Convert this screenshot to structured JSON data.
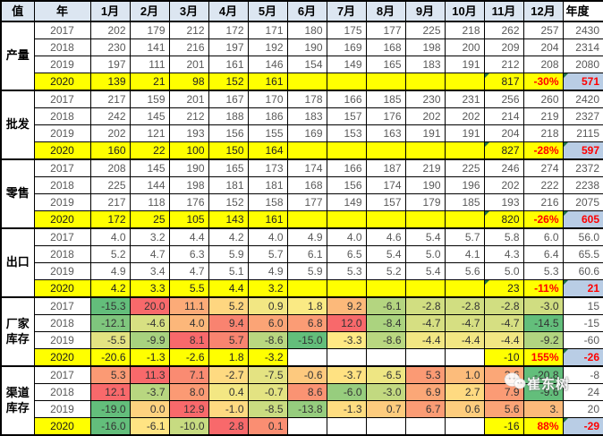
{
  "watermark": {
    "text": "崔东树",
    "icon": "wechat-icon"
  },
  "colors": {
    "header_bg": "#dce6f1",
    "highlight_yellow": "#ffff00",
    "annual_2020_bg": "#b9cde5",
    "negative_red": "#ff0000",
    "plain_text_gray": "#595959",
    "heat_green": "#63be7b",
    "heat_yellow": "#ffeb84",
    "heat_red": "#f8696b",
    "triangle_green": "#1e7145",
    "grid_black": "#000000"
  },
  "chart_data": {
    "type": "table",
    "columns": [
      "值",
      "年",
      "1月",
      "2月",
      "3月",
      "4月",
      "5月",
      "6月",
      "7月",
      "8月",
      "9月",
      "10月",
      "11月",
      "12月",
      "年度"
    ],
    "sections": [
      {
        "label": "产量",
        "heat": false,
        "rows": [
          {
            "year": "2017",
            "values": [
              "202",
              "179",
              "212",
              "172",
              "171",
              "180",
              "175",
              "177",
              "225",
              "218",
              "262",
              "257"
            ],
            "annual": "2430"
          },
          {
            "year": "2018",
            "values": [
              "230",
              "141",
              "216",
              "197",
              "192",
              "190",
              "169",
              "168",
              "198",
              "200",
              "209",
              "204"
            ],
            "annual": "2314"
          },
          {
            "year": "2019",
            "values": [
              "197",
              "111",
              "201",
              "161",
              "146",
              "154",
              "149",
              "165",
              "183",
              "191",
              "212",
              "208"
            ],
            "annual": "2080"
          },
          {
            "year": "2020",
            "values": [
              "139",
              "21",
              "98",
              "152",
              "161",
              "",
              "",
              "",
              "",
              "",
              "817",
              "-30%"
            ],
            "annual": "571",
            "values_style": "yellow"
          }
        ]
      },
      {
        "label": "批发",
        "heat": false,
        "rows": [
          {
            "year": "2017",
            "values": [
              "217",
              "159",
              "201",
              "167",
              "170",
              "178",
              "166",
              "185",
              "230",
              "231",
              "256",
              "260"
            ],
            "annual": "2420"
          },
          {
            "year": "2018",
            "values": [
              "242",
              "145",
              "212",
              "188",
              "186",
              "183",
              "157",
              "176",
              "202",
              "202",
              "214",
              "219"
            ],
            "annual": "2327"
          },
          {
            "year": "2019",
            "values": [
              "202",
              "121",
              "193",
              "156",
              "155",
              "169",
              "153",
              "163",
              "191",
              "191",
              "204",
              "218"
            ],
            "annual": "2115"
          },
          {
            "year": "2020",
            "values": [
              "160",
              "22",
              "100",
              "150",
              "164",
              "",
              "",
              "",
              "",
              "",
              "827",
              "-28%"
            ],
            "annual": "597",
            "values_style": "yellow"
          }
        ]
      },
      {
        "label": "零售",
        "heat": false,
        "rows": [
          {
            "year": "2017",
            "values": [
              "208",
              "145",
              "190",
              "165",
              "173",
              "174",
              "166",
              "187",
              "219",
              "225",
              "246",
              "274"
            ],
            "annual": "2372"
          },
          {
            "year": "2018",
            "values": [
              "225",
              "144",
              "198",
              "181",
              "181",
              "168",
              "156",
              "174",
              "190",
              "196",
              "202",
              "222"
            ],
            "annual": "2238"
          },
          {
            "year": "2019",
            "values": [
              "217",
              "118",
              "176",
              "152",
              "158",
              "177",
              "149",
              "157",
              "179",
              "185",
              "193",
              "216"
            ],
            "annual": "2075"
          },
          {
            "year": "2020",
            "values": [
              "172",
              "25",
              "105",
              "143",
              "161",
              "",
              "",
              "",
              "",
              "",
              "820",
              "-26%"
            ],
            "annual": "605",
            "values_style": "yellow"
          }
        ]
      },
      {
        "label": "出口",
        "heat": false,
        "rows": [
          {
            "year": "2017",
            "values": [
              "4.0",
              "3.2",
              "4.4",
              "4.2",
              "4.0",
              "4.9",
              "4.0",
              "4.6",
              "5.4",
              "5.7",
              "5.8",
              "6.0"
            ],
            "annual": "56.0"
          },
          {
            "year": "2018",
            "values": [
              "5.2",
              "4.7",
              "6.3",
              "5.9",
              "5.7",
              "6.1",
              "6.5",
              "5.4",
              "5.0",
              "4.1",
              "4.3",
              "6.4"
            ],
            "annual": "65.5"
          },
          {
            "year": "2019",
            "values": [
              "4.9",
              "3.4",
              "4.7",
              "5.1",
              "4.9",
              "5.9",
              "5.3",
              "5.2",
              "5.4",
              "5.6",
              "5.0",
              "5.3"
            ],
            "annual": "60.6"
          },
          {
            "year": "2020",
            "values": [
              "4.2",
              "3.3",
              "5.5",
              "4.4",
              "3.2",
              "",
              "",
              "",
              "",
              "",
              "23",
              "-11%"
            ],
            "annual": "21",
            "values_style": "yellow"
          }
        ]
      },
      {
        "label": "厂家库存",
        "heat": true,
        "rows": [
          {
            "year": "2017",
            "values": [
              "-15.3",
              "20.0",
              "11.1",
              "5.2",
              "0.9",
              "1.8",
              "9.2",
              "-6.1",
              "-2.8",
              "-2.8",
              "-2.8",
              "-3.0"
            ],
            "annual": "15"
          },
          {
            "year": "2018",
            "values": [
              "-12.1",
              "-4.6",
              "4.0",
              "9.4",
              "6.0",
              "6.8",
              "12.0",
              "-8.4",
              "-4.7",
              "-4.7",
              "-4.7",
              "-14.5"
            ],
            "annual": "-15"
          },
          {
            "year": "2019",
            "values": [
              "-5.5",
              "-9.9",
              "8.1",
              "5.7",
              "-8.6",
              "-15.0",
              "-3.3",
              "-8.6",
              "-4.4",
              "-4.4",
              "-4.4",
              "-9.2"
            ],
            "annual": "-60"
          },
          {
            "year": "2020",
            "values": [
              "-20.6",
              "-1.3",
              "-2.6",
              "1.8",
              "-3.2",
              "",
              "",
              "",
              "",
              "",
              "-10",
              "155%"
            ],
            "annual": "-26",
            "values_style": "yellow"
          }
        ]
      },
      {
        "label": "渠道库存",
        "heat": true,
        "rows": [
          {
            "year": "2017",
            "values": [
              "5.3",
              "11.3",
              "7.1",
              "-2.7",
              "-7.5",
              "-0.6",
              "-3.7",
              "-6.5",
              "5.3",
              "1.0",
              "3.6",
              "-20.8"
            ],
            "annual": "-8"
          },
          {
            "year": "2018",
            "values": [
              "12.1",
              "-3.7",
              "8.0",
              "0.4",
              "-0.7",
              "8.6",
              "-6.0",
              "-3.0",
              "6.9",
              "2.7",
              "7.9",
              "-9.6"
            ],
            "annual": "24"
          },
          {
            "year": "2019",
            "values": [
              "-19.0",
              "0.0",
              "12.9",
              "-1.0",
              "-8.5",
              "-13.8",
              "-1.3",
              "0.7",
              "6.7",
              "0.6",
              "5.6",
              "3."
            ],
            "annual": "20"
          },
          {
            "year": "2020",
            "values": [
              "-16.0",
              "-6.1",
              "-10.0",
              "2.8",
              "0.1",
              "",
              "",
              "",
              "",
              "",
              "-16",
              "88%"
            ],
            "annual": "-29",
            "values_style": "heat"
          }
        ]
      }
    ]
  }
}
